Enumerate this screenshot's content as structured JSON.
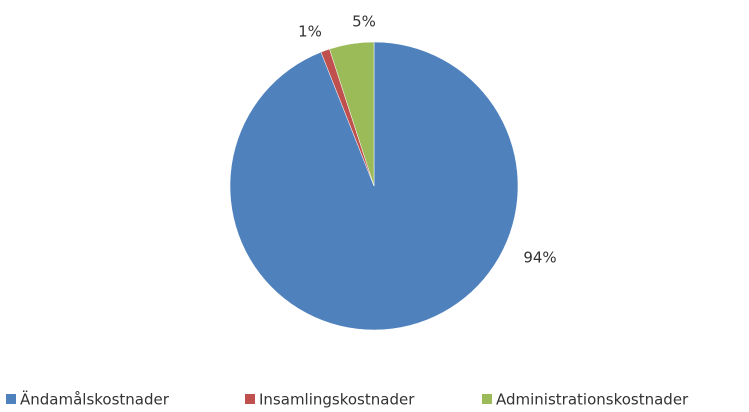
{
  "chart_data": {
    "type": "pie",
    "categories": [
      "Ändamålskostnader",
      "Insamlingskostnader",
      "Administrationskostnader"
    ],
    "values": [
      94,
      1,
      5
    ],
    "value_labels": [
      "94%",
      "1%",
      "5%"
    ],
    "colors": [
      "#4f81bd",
      "#c0504d",
      "#9bbb59"
    ],
    "legend": "bottom"
  }
}
